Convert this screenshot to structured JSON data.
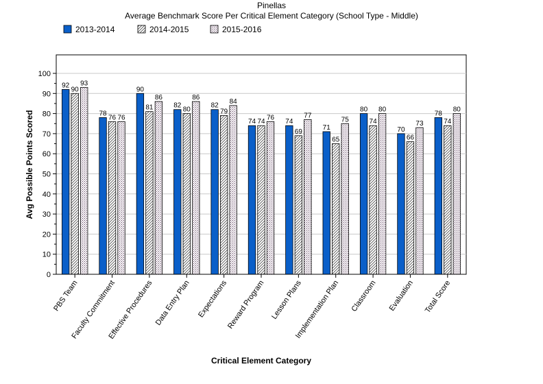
{
  "chart_data": {
    "type": "bar",
    "title": "Pinellas",
    "subtitle": "Average Benchmark Score Per Critical Element Category (School Type - Middle)",
    "xlabel": "Critical Element Category",
    "ylabel": "Avg Possible Points Scored",
    "ylim": [
      0,
      100
    ],
    "yticks": [
      0,
      10,
      20,
      30,
      40,
      50,
      60,
      70,
      80,
      90,
      100
    ],
    "grid": true,
    "legend_position": "top-left",
    "categories": [
      "PBS Team",
      "Faculty Commitment",
      "Effective Procedures",
      "Data Entry Plan",
      "Expectations",
      "Reward Program",
      "Lesson Plans",
      "Implementation Plan",
      "Classroom",
      "Evaluation",
      "Total Score"
    ],
    "series": [
      {
        "name": "2013-2014",
        "values": [
          92,
          78,
          90,
          82,
          82,
          74,
          74,
          71,
          80,
          70,
          78
        ],
        "color": "#0a5fc9",
        "pattern": "solid"
      },
      {
        "name": "2014-2015",
        "values": [
          90,
          76,
          81,
          80,
          79,
          74,
          69,
          65,
          74,
          66,
          74
        ],
        "color": "#ffffff",
        "pattern": "diagonal"
      },
      {
        "name": "2015-2016",
        "values": [
          93,
          76,
          86,
          86,
          84,
          76,
          77,
          75,
          80,
          73,
          80
        ],
        "color": "#ffffff",
        "pattern": "dots"
      }
    ]
  }
}
